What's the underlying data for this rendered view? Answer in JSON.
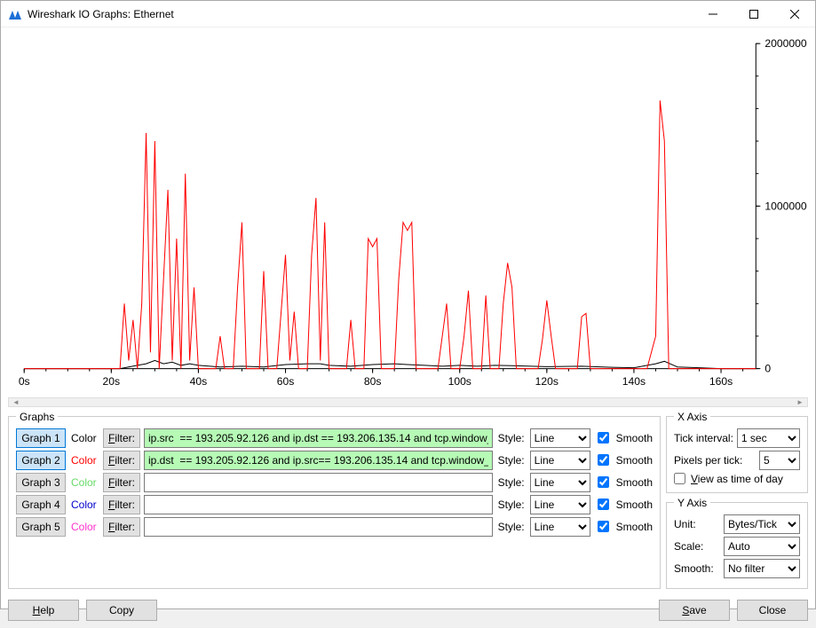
{
  "window": {
    "title": "Wireshark IO Graphs: Ethernet",
    "icon_fill": "#1e6fd6"
  },
  "chart": {
    "type": "line",
    "background_color": "#ffffff",
    "plot_border_color": "#000000",
    "axis_fontsize": 12,
    "x": {
      "min": 0,
      "max": 168,
      "ticks": [
        0,
        20,
        40,
        60,
        80,
        100,
        120,
        140,
        160
      ],
      "tick_labels": [
        "0s",
        "20s",
        "40s",
        "60s",
        "80s",
        "100s",
        "120s",
        "140s",
        "160s"
      ]
    },
    "y": {
      "min": 0,
      "max": 2000000,
      "ticks": [
        0,
        1000000,
        2000000
      ],
      "tick_labels": [
        "0",
        "1000000",
        "2000000"
      ]
    },
    "series": [
      {
        "name": "graph1",
        "color": "#000000",
        "line_width": 1,
        "points": [
          [
            0,
            0
          ],
          [
            22,
            0
          ],
          [
            24,
            10000
          ],
          [
            26,
            20000
          ],
          [
            28,
            30000
          ],
          [
            30,
            50000
          ],
          [
            32,
            30000
          ],
          [
            34,
            40000
          ],
          [
            36,
            20000
          ],
          [
            38,
            30000
          ],
          [
            40,
            20000
          ],
          [
            45,
            10000
          ],
          [
            50,
            15000
          ],
          [
            55,
            10000
          ],
          [
            60,
            25000
          ],
          [
            65,
            30000
          ],
          [
            68,
            30000
          ],
          [
            70,
            20000
          ],
          [
            75,
            15000
          ],
          [
            80,
            25000
          ],
          [
            85,
            30000
          ],
          [
            88,
            25000
          ],
          [
            92,
            20000
          ],
          [
            96,
            15000
          ],
          [
            100,
            20000
          ],
          [
            104,
            15000
          ],
          [
            108,
            20000
          ],
          [
            112,
            18000
          ],
          [
            120,
            12000
          ],
          [
            128,
            15000
          ],
          [
            135,
            8000
          ],
          [
            140,
            5000
          ],
          [
            145,
            30000
          ],
          [
            147,
            45000
          ],
          [
            150,
            10000
          ],
          [
            155,
            5000
          ],
          [
            160,
            0
          ],
          [
            168,
            0
          ]
        ]
      },
      {
        "name": "graph2",
        "color": "#ff0000",
        "line_width": 1,
        "points": [
          [
            0,
            0
          ],
          [
            20,
            0
          ],
          [
            22,
            0
          ],
          [
            23,
            400000
          ],
          [
            24,
            50000
          ],
          [
            25,
            300000
          ],
          [
            26,
            0
          ],
          [
            27,
            400000
          ],
          [
            28,
            1450000
          ],
          [
            29,
            100000
          ],
          [
            30,
            1400000
          ],
          [
            31,
            0
          ],
          [
            33,
            1100000
          ],
          [
            34,
            50000
          ],
          [
            35,
            800000
          ],
          [
            36,
            0
          ],
          [
            37,
            1200000
          ],
          [
            38,
            50000
          ],
          [
            39,
            500000
          ],
          [
            40,
            0
          ],
          [
            44,
            0
          ],
          [
            45,
            200000
          ],
          [
            46,
            0
          ],
          [
            48,
            0
          ],
          [
            49,
            500000
          ],
          [
            50,
            900000
          ],
          [
            51,
            0
          ],
          [
            54,
            0
          ],
          [
            55,
            600000
          ],
          [
            56,
            0
          ],
          [
            58,
            0
          ],
          [
            59,
            350000
          ],
          [
            60,
            700000
          ],
          [
            61,
            50000
          ],
          [
            62,
            350000
          ],
          [
            63,
            0
          ],
          [
            65,
            0
          ],
          [
            66,
            700000
          ],
          [
            67,
            1050000
          ],
          [
            68,
            50000
          ],
          [
            69,
            900000
          ],
          [
            70,
            0
          ],
          [
            74,
            0
          ],
          [
            75,
            300000
          ],
          [
            76,
            0
          ],
          [
            78,
            0
          ],
          [
            79,
            800000
          ],
          [
            80,
            750000
          ],
          [
            81,
            800000
          ],
          [
            82,
            0
          ],
          [
            85,
            0
          ],
          [
            86,
            550000
          ],
          [
            87,
            900000
          ],
          [
            88,
            850000
          ],
          [
            89,
            900000
          ],
          [
            90,
            0
          ],
          [
            95,
            0
          ],
          [
            96,
            200000
          ],
          [
            97,
            400000
          ],
          [
            98,
            0
          ],
          [
            100,
            0
          ],
          [
            101,
            200000
          ],
          [
            102,
            480000
          ],
          [
            103,
            0
          ],
          [
            105,
            0
          ],
          [
            106,
            450000
          ],
          [
            107,
            0
          ],
          [
            109,
            0
          ],
          [
            110,
            400000
          ],
          [
            111,
            650000
          ],
          [
            112,
            500000
          ],
          [
            113,
            0
          ],
          [
            118,
            0
          ],
          [
            119,
            180000
          ],
          [
            120,
            420000
          ],
          [
            121,
            200000
          ],
          [
            122,
            0
          ],
          [
            127,
            0
          ],
          [
            128,
            320000
          ],
          [
            129,
            340000
          ],
          [
            130,
            0
          ],
          [
            143,
            0
          ],
          [
            144,
            100000
          ],
          [
            145,
            200000
          ],
          [
            146,
            1650000
          ],
          [
            147,
            1400000
          ],
          [
            148,
            0
          ],
          [
            168,
            0
          ]
        ]
      }
    ]
  },
  "graphs_panel": {
    "legend": "Graphs",
    "rows": [
      {
        "btn": "Graph 1",
        "pressed": true,
        "color_label": "Color",
        "color": "#000000",
        "filter_btn": "Filter:",
        "filter": "ip.src  == 193.205.92.126 and ip.dst == 193.206.135.14 and tcp.window_size",
        "filter_bg": "green",
        "style_label": "Style:",
        "style": "Line",
        "smooth_label": "Smooth",
        "smooth": true
      },
      {
        "btn": "Graph 2",
        "pressed": true,
        "color_label": "Color",
        "color": "#ff0000",
        "filter_btn": "Filter:",
        "filter": "ip.dst  == 193.205.92.126 and ip.src== 193.206.135.14 and tcp.window_size",
        "filter_bg": "green",
        "style_label": "Style:",
        "style": "Line",
        "smooth_label": "Smooth",
        "smooth": true
      },
      {
        "btn": "Graph 3",
        "pressed": false,
        "color_label": "Color",
        "color": "#66d966",
        "filter_btn": "Filter:",
        "filter": "",
        "filter_bg": "",
        "style_label": "Style:",
        "style": "Line",
        "smooth_label": "Smooth",
        "smooth": true
      },
      {
        "btn": "Graph 4",
        "pressed": false,
        "color_label": "Color",
        "color": "#0000cc",
        "filter_btn": "Filter:",
        "filter": "",
        "filter_bg": "",
        "style_label": "Style:",
        "style": "Line",
        "smooth_label": "Smooth",
        "smooth": true
      },
      {
        "btn": "Graph 5",
        "pressed": false,
        "color_label": "Color",
        "color": "#ff33cc",
        "filter_btn": "Filter:",
        "filter": "",
        "filter_bg": "",
        "style_label": "Style:",
        "style": "Line",
        "smooth_label": "Smooth",
        "smooth": true
      }
    ]
  },
  "x_axis_panel": {
    "legend": "X Axis",
    "tick_interval_label": "Tick interval:",
    "tick_interval": "1 sec",
    "pixels_per_tick_label": "Pixels per tick:",
    "pixels_per_tick": "5",
    "view_as_tod_label": "View as time of day",
    "view_as_tod": false
  },
  "y_axis_panel": {
    "legend": "Y Axis",
    "unit_label": "Unit:",
    "unit": "Bytes/Tick",
    "scale_label": "Scale:",
    "scale": "Auto",
    "smooth_label": "Smooth:",
    "smooth": "No filter"
  },
  "bottom": {
    "help": "Help",
    "copy": "Copy",
    "save": "Save",
    "close": "Close"
  }
}
